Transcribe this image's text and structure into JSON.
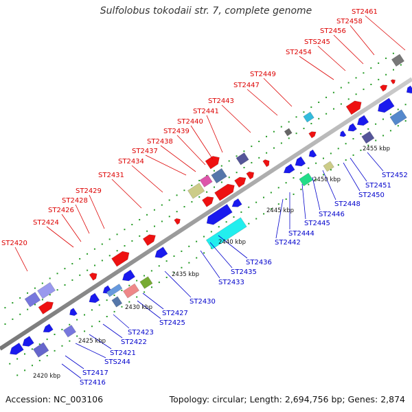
{
  "title": "Sulfolobus tokodaii str. 7, complete genome",
  "footer": {
    "accession": "Accession: NC_003106",
    "summary": "Topology: circular; Length: 2,694,756 bp; Genes: 2,874"
  },
  "scale": {
    "kbp_labels": [
      "2420 kbp",
      "2425 kbp",
      "2430 kbp",
      "2435 kbp",
      "2440 kbp",
      "2445 kbp",
      "2450 kbp",
      "2455 kbp"
    ]
  },
  "top_genes": [
    "ST2420",
    "ST2424",
    "ST2426",
    "ST2428",
    "ST2429",
    "ST2431",
    "ST2434",
    "ST2437",
    "ST2438",
    "ST2439",
    "ST2440",
    "ST2441",
    "ST2443",
    "ST2447",
    "ST2449",
    "ST2454",
    "STS245",
    "ST2456",
    "ST2458",
    "ST2461"
  ],
  "bottom_genes": [
    "ST2416",
    "ST2417",
    "STS244",
    "ST2421",
    "ST2422",
    "ST2423",
    "ST2425",
    "ST2427",
    "ST2430",
    "ST2433",
    "ST2435",
    "ST2436",
    "ST2442",
    "ST2444",
    "ST2445",
    "ST2446",
    "ST2448",
    "ST2450",
    "ST2451",
    "ST2452"
  ],
  "colors": {
    "forward": "#ee1111",
    "reverse": "#1a1aee",
    "backbone": "#999999",
    "top_label": "#dd0000",
    "bottom_label": "#0000cc"
  }
}
